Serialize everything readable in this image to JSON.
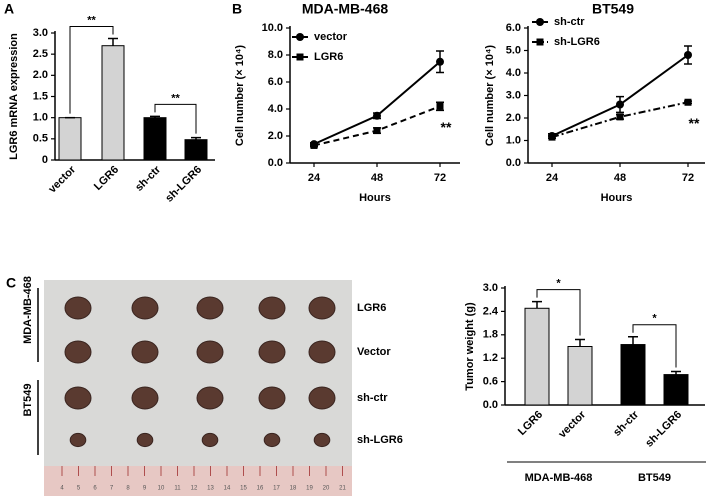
{
  "chart_data": [
    {
      "type": "bar",
      "panel_label": "A",
      "y_label": "LGR6 mRNA expression",
      "categories": [
        "vector",
        "LGR6",
        "sh-ctr",
        "sh-LGR6"
      ],
      "values": [
        1.0,
        2.7,
        1.0,
        0.48
      ],
      "errors": [
        0,
        0.17,
        0.03,
        0.05
      ],
      "colors": [
        "#d3d3d3",
        "#d3d3d3",
        "#000000",
        "#000000"
      ],
      "ylim": [
        0,
        3
      ],
      "yticks": [
        0,
        0.5,
        {
          "value": 1,
          "label": "1.0"
        },
        1.5,
        {
          "value": 2,
          "label": "2.0"
        },
        2.5,
        {
          "value": 3,
          "label": "3.0"
        }
      ],
      "annotations": [
        "**",
        "**"
      ]
    },
    {
      "type": "line",
      "panel_label": "B",
      "title": "MDA-MB-468",
      "x_label": "Hours",
      "y_label": "Cell number (× 10⁴)",
      "categories": [
        "24",
        "48",
        "72"
      ],
      "legend": "upper left",
      "series": [
        {
          "name": "vector",
          "color": "#000000",
          "marker": "circle",
          "line_style": "solid",
          "values": [
            1.4,
            3.5,
            7.5
          ],
          "errors": [
            0.1,
            0.2,
            0.8
          ]
        },
        {
          "name": "LGR6",
          "color": "#000000",
          "marker": "square",
          "line_style": "dashed",
          "values": [
            1.3,
            2.4,
            4.2
          ],
          "errors": [
            0.1,
            0.2,
            0.3
          ]
        }
      ],
      "ylim": [
        0,
        10
      ],
      "yticks": [
        {
          "value": 0,
          "label": "0.0"
        },
        {
          "value": 2,
          "label": "2.0"
        },
        {
          "value": 4,
          "label": "4.0"
        },
        {
          "value": 6,
          "label": "6.0"
        },
        {
          "value": 8,
          "label": "8.0"
        },
        {
          "value": 10,
          "label": "10.0"
        }
      ],
      "annotations": [
        "**"
      ]
    },
    {
      "type": "line",
      "title": "BT549",
      "x_label": "Hours",
      "y_label": "Cell number (× 10⁴)",
      "categories": [
        "24",
        "48",
        "72"
      ],
      "legend": "upper left",
      "series": [
        {
          "name": "sh-ctr",
          "color": "#000000",
          "marker": "circle",
          "line_style": "solid",
          "values": [
            1.2,
            2.6,
            4.8
          ],
          "errors": [
            0.1,
            0.35,
            0.4
          ]
        },
        {
          "name": "sh-LGR6",
          "color": "#000000",
          "marker": "square",
          "line_style": "dash-dot",
          "values": [
            1.15,
            2.05,
            2.7
          ],
          "errors": [
            0.05,
            0.1,
            0.05
          ]
        }
      ],
      "ylim": [
        0,
        6
      ],
      "yticks": [
        {
          "value": 0,
          "label": "0.0"
        },
        {
          "value": 1,
          "label": "1.0"
        },
        {
          "value": 2,
          "label": "2.0"
        },
        {
          "value": 3,
          "label": "3.0"
        },
        {
          "value": 4,
          "label": "4.0"
        },
        {
          "value": 5,
          "label": "5.0"
        },
        {
          "value": 6,
          "label": "6.0"
        }
      ],
      "annotations": [
        "**"
      ]
    },
    {
      "type": "bar",
      "y_label": "Tumor weight (g)",
      "categories": [
        "LGR6",
        "vector",
        "sh-ctr",
        "sh-LGR6"
      ],
      "values": [
        2.48,
        1.5,
        1.55,
        0.78
      ],
      "errors": [
        0.17,
        0.18,
        0.2,
        0.08
      ],
      "colors": [
        "#d3d3d3",
        "#d3d3d3",
        "#000000",
        "#000000"
      ],
      "ylim": [
        0,
        3
      ],
      "yticks": [
        {
          "value": 0,
          "label": "0.0"
        },
        0.6,
        1.2,
        1.8,
        2.4,
        {
          "value": 3,
          "label": "3.0"
        }
      ],
      "groups": [
        "MDA-MB-468",
        "BT549"
      ],
      "annotations": [
        "*",
        "*"
      ]
    }
  ],
  "photo": {
    "panel_label": "C",
    "group_labels": [
      "MDA-MB-468",
      "BT549"
    ],
    "row_labels": [
      "LGR6",
      "Vector",
      "sh-ctr",
      "sh-LGR6"
    ],
    "ruler_labels": [
      "4",
      "5",
      "6",
      "7",
      "8",
      "9",
      "10",
      "11",
      "12",
      "13",
      "14",
      "15",
      "16",
      "17",
      "18",
      "19",
      "20",
      "21"
    ]
  }
}
